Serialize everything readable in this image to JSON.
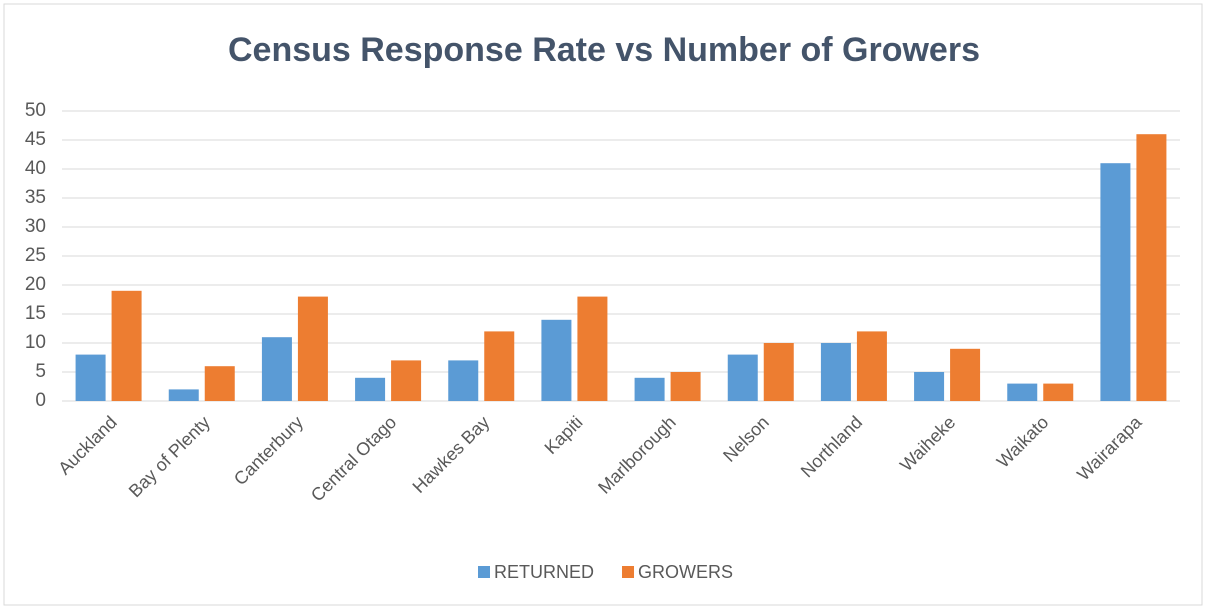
{
  "chart_data": {
    "type": "bar",
    "title": "Census Response Rate vs Number of Growers",
    "categories": [
      "Auckland",
      "Bay of Plenty",
      "Canterbury",
      "Central Otago",
      "Hawkes Bay",
      "Kapiti",
      "Marlborough",
      "Nelson",
      "Northland",
      "Waiheke",
      "Waikato",
      "Wairarapa"
    ],
    "series": [
      {
        "name": "RETURNED",
        "color": "#5b9bd5",
        "values": [
          8,
          2,
          11,
          4,
          7,
          14,
          4,
          8,
          10,
          5,
          3,
          41
        ]
      },
      {
        "name": "GROWERS",
        "color": "#ed7d31",
        "values": [
          19,
          6,
          18,
          7,
          12,
          18,
          5,
          10,
          12,
          9,
          3,
          46
        ]
      }
    ],
    "ylim": [
      0,
      50
    ],
    "yticks": [
      0,
      5,
      10,
      15,
      20,
      25,
      30,
      35,
      40,
      45,
      50
    ],
    "grid": true,
    "legend": "bottom"
  }
}
